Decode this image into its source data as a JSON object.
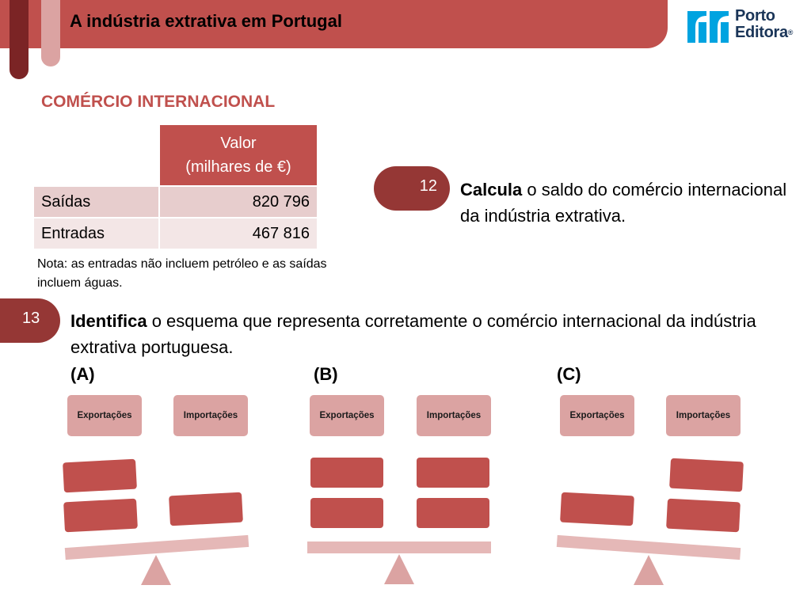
{
  "header": {
    "title": "A indústria extrativa em Portugal",
    "logo_line1": "Porto",
    "logo_line2": "Editora",
    "logo_reg": "®"
  },
  "section_title": "COMÉRCIO INTERNACIONAL",
  "table": {
    "header_line1": "Valor",
    "header_line2": "(milhares de €)",
    "rows": [
      {
        "label": "Saídas",
        "value": "820 796"
      },
      {
        "label": "Entradas",
        "value": "467 816"
      }
    ]
  },
  "note": "Nota: as entradas não incluem petróleo e as saídas incluem águas.",
  "question12": {
    "number": "12",
    "bold": "Calcula",
    "text": " o saldo do comércio internacional da indústria extrativa."
  },
  "question13": {
    "number": "13",
    "bold": "Identifica",
    "text": " o esquema que representa corretamente o comércio internacional da indústria extrativa portuguesa."
  },
  "options": [
    {
      "label": "(A)",
      "left_label": "Exportações",
      "right_label": "Importações"
    },
    {
      "label": "(B)",
      "left_label": "Exportações",
      "right_label": "Importações"
    },
    {
      "label": "(C)",
      "left_label": "Exportações",
      "right_label": "Importações"
    }
  ],
  "colors": {
    "primary_red": "#c0504d",
    "dark_red": "#953735",
    "light_pink": "#dba3a2",
    "beam_pink": "#e5b8b7",
    "logo_blue": "#00a3e0",
    "logo_navy": "#1a3558"
  }
}
